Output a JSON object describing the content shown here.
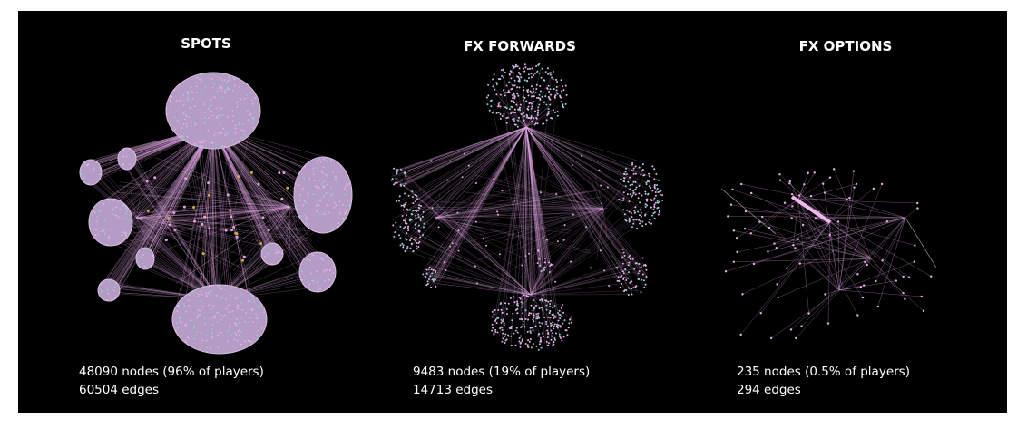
{
  "panels": [
    {
      "title": "SPOTS",
      "nodes": "48090 nodes (96% of players)",
      "edges": "60504 edges"
    },
    {
      "title": "FX FORWARDS",
      "nodes": "9483 nodes (19% of players)",
      "edges": "14713 edges"
    },
    {
      "title": "FX OPTIONS",
      "nodes": "235 nodes (0.5% of players)",
      "edges": "294 edges"
    }
  ]
}
